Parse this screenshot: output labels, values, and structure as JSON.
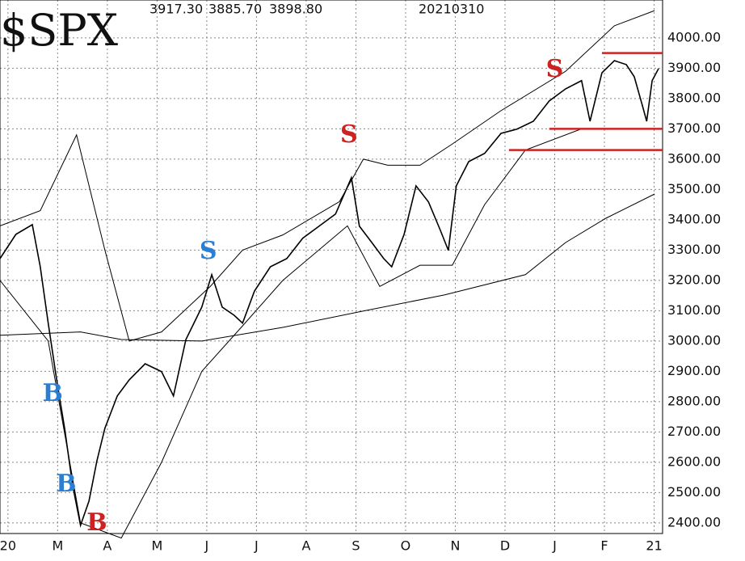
{
  "chart_data": {
    "type": "line",
    "title": "$SPX",
    "header_values": [
      "3917.30",
      "3885.70",
      "3898.80"
    ],
    "date": "20210310",
    "xlim": [
      -0.16,
      13.17
    ],
    "ylim": [
      2365,
      4125
    ],
    "xticks": [
      {
        "value": 0,
        "label": "20"
      },
      {
        "value": 1,
        "label": "M"
      },
      {
        "value": 2,
        "label": "A"
      },
      {
        "value": 3,
        "label": "M"
      },
      {
        "value": 4,
        "label": "J"
      },
      {
        "value": 5,
        "label": "J"
      },
      {
        "value": 6,
        "label": "A"
      },
      {
        "value": 7,
        "label": "S"
      },
      {
        "value": 8,
        "label": "O"
      },
      {
        "value": 9,
        "label": "N"
      },
      {
        "value": 10,
        "label": "D"
      },
      {
        "value": 11,
        "label": "J"
      },
      {
        "value": 12,
        "label": "F"
      },
      {
        "value": 13,
        "label": "21"
      }
    ],
    "yticks": [
      {
        "value": 2400,
        "label": "2400.00"
      },
      {
        "value": 2500,
        "label": "2500.00"
      },
      {
        "value": 2600,
        "label": "2600.00"
      },
      {
        "value": 2700,
        "label": "2700.00"
      },
      {
        "value": 2800,
        "label": "2800.00"
      },
      {
        "value": 2900,
        "label": "2900.00"
      },
      {
        "value": 3000,
        "label": "3000.00"
      },
      {
        "value": 3100,
        "label": "3100.00"
      },
      {
        "value": 3200,
        "label": "3200.00"
      },
      {
        "value": 3300,
        "label": "3300.00"
      },
      {
        "value": 3400,
        "label": "3400.00"
      },
      {
        "value": 3500,
        "label": "3500.00"
      },
      {
        "value": 3600,
        "label": "3600.00"
      },
      {
        "value": 3700,
        "label": "3700.00"
      },
      {
        "value": 3800,
        "label": "3800.00"
      },
      {
        "value": 3900,
        "label": "3900.00"
      },
      {
        "value": 4000,
        "label": "4000.00"
      }
    ],
    "grid": true,
    "series": [
      {
        "color": "#000000",
        "width": 1.6,
        "x": [
          -0.16,
          0.16,
          0.49,
          0.65,
          0.81,
          0.98,
          1.14,
          1.3,
          1.46,
          1.63,
          1.79,
          1.95,
          2.2,
          2.44,
          2.76,
          3.09,
          3.33,
          3.58,
          3.9,
          4.1,
          4.31,
          4.55,
          4.72,
          4.96,
          5.28,
          5.61,
          5.93,
          6.26,
          6.59,
          6.91,
          7.07,
          7.32,
          7.56,
          7.72,
          7.97,
          8.21,
          8.46,
          8.7,
          8.86,
          9.02,
          9.27,
          9.59,
          9.92,
          10.24,
          10.57,
          10.89,
          11.22,
          11.54,
          11.71,
          11.95,
          12.2,
          12.44,
          12.6,
          12.76,
          12.85,
          12.96,
          13.09
        ],
        "values": [
          3272,
          3352,
          3384,
          3245,
          3059,
          2872,
          2712,
          2525,
          2392,
          2472,
          2605,
          2712,
          2819,
          2872,
          2925,
          2899,
          2819,
          3005,
          3112,
          3219,
          3112,
          3085,
          3059,
          3165,
          3245,
          3272,
          3339,
          3379,
          3419,
          3539,
          3379,
          3325,
          3272,
          3245,
          3352,
          3512,
          3459,
          3365,
          3299,
          3512,
          3592,
          3619,
          3685,
          3699,
          3725,
          3792,
          3832,
          3859,
          3725,
          3885,
          3925,
          3912,
          3872,
          3779,
          3725,
          3859,
          3899
        ]
      },
      {
        "color": "#000000",
        "width": 1,
        "x": [
          -0.16,
          1.46,
          2.28,
          3.9,
          5.53,
          7.15,
          8.78,
          10.41,
          11.22,
          12.03,
          13.01
        ],
        "values": [
          3019,
          3030,
          3005,
          3000,
          3045,
          3099,
          3152,
          3219,
          3325,
          3405,
          3485
        ]
      },
      {
        "color": "#000000",
        "width": 1,
        "x": [
          -0.16,
          0.65,
          1.38,
          1.95,
          2.44,
          3.09,
          4.07,
          4.72,
          5.53,
          6.67,
          7.15,
          7.64,
          8.29,
          8.94,
          9.92,
          11.22,
          12.2,
          13.01
        ],
        "values": [
          3380,
          3430,
          3680,
          3300,
          3000,
          3030,
          3180,
          3300,
          3350,
          3460,
          3600,
          3580,
          3580,
          3650,
          3760,
          3890,
          4040,
          4090
        ]
      },
      {
        "color": "#000000",
        "width": 1,
        "x": [
          -0.16,
          0.81,
          1.46,
          2.28,
          3.09,
          3.9,
          4.72,
          5.53,
          6.83,
          7.48,
          8.29,
          8.94,
          9.59,
          10.41,
          11.54,
          12.85
        ],
        "values": [
          3200,
          3000,
          2400,
          2350,
          2600,
          2900,
          3050,
          3200,
          3380,
          3180,
          3250,
          3250,
          3450,
          3630,
          3700,
          3700
        ]
      }
    ],
    "levels": [
      {
        "value": 3950,
        "from": 11.95,
        "color": "#cc2222"
      },
      {
        "value": 3700,
        "from": 10.89,
        "color": "#cc2222"
      },
      {
        "value": 3630,
        "from": 10.08,
        "color": "#cc2222"
      }
    ],
    "signals": [
      {
        "label": "B",
        "x": 0.9,
        "y": 2824,
        "color": "#2a7fd4"
      },
      {
        "label": "B",
        "x": 1.17,
        "y": 2525,
        "color": "#2a7fd4"
      },
      {
        "label": "B",
        "x": 1.79,
        "y": 2397,
        "color": "#cc2222"
      },
      {
        "label": "S",
        "x": 4.03,
        "y": 3293,
        "color": "#2a7fd4"
      },
      {
        "label": "S",
        "x": 6.86,
        "y": 3677,
        "color": "#cc2222"
      },
      {
        "label": "S",
        "x": 11.0,
        "y": 3893,
        "color": "#cc2222"
      }
    ]
  }
}
